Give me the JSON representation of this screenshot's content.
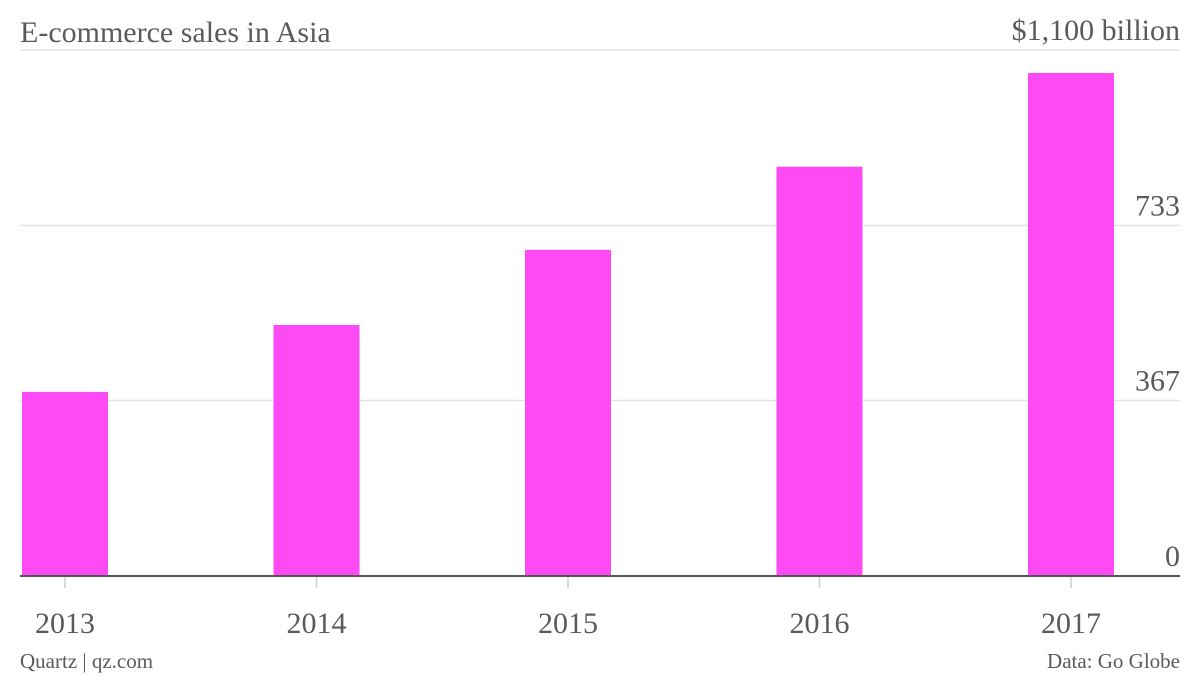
{
  "chart_data": {
    "type": "bar",
    "title": "E-commerce sales in Asia",
    "categories": [
      "2013",
      "2014",
      "2015",
      "2016",
      "2017"
    ],
    "values": [
      385,
      525,
      682,
      856,
      1052
    ],
    "color": "#fd4af5",
    "ylim": [
      0,
      1100
    ],
    "yticks": [
      0,
      367,
      733,
      {
        "value": 1100,
        "label": "$1,100 billion"
      }
    ],
    "grid": true,
    "source_left": "Quartz | qz.com",
    "source_right": "Data: Go Globe"
  }
}
